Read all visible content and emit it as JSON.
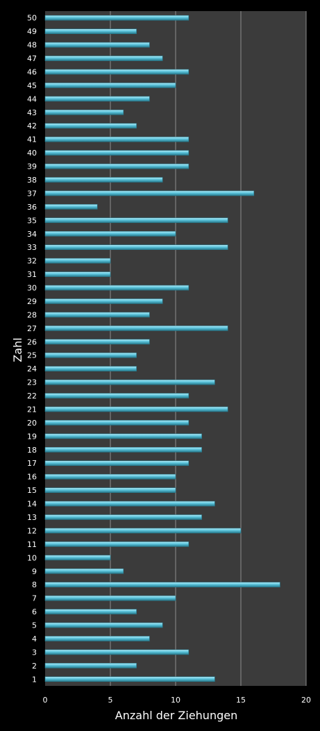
{
  "chart_data": {
    "type": "bar",
    "orientation": "horizontal",
    "categories": [
      "1",
      "2",
      "3",
      "4",
      "5",
      "6",
      "7",
      "8",
      "9",
      "10",
      "11",
      "12",
      "13",
      "14",
      "15",
      "16",
      "17",
      "18",
      "19",
      "20",
      "21",
      "22",
      "23",
      "24",
      "25",
      "26",
      "27",
      "28",
      "29",
      "30",
      "31",
      "32",
      "33",
      "34",
      "35",
      "36",
      "37",
      "38",
      "39",
      "40",
      "41",
      "42",
      "43",
      "44",
      "45",
      "46",
      "47",
      "48",
      "49",
      "50"
    ],
    "values": [
      13,
      7,
      11,
      8,
      9,
      7,
      10,
      18,
      6,
      5,
      11,
      15,
      12,
      13,
      10,
      10,
      11,
      12,
      12,
      11,
      14,
      11,
      13,
      7,
      7,
      8,
      14,
      8,
      9,
      11,
      5,
      5,
      14,
      10,
      14,
      4,
      16,
      9,
      11,
      11,
      11,
      7,
      6,
      8,
      10,
      11,
      9,
      8,
      7,
      11
    ],
    "xlabel": "Anzahl der Ziehungen",
    "ylabel": "Zahl",
    "xlim": [
      0,
      20
    ],
    "xticks": [
      0,
      5,
      10,
      15,
      20
    ],
    "grid": true,
    "colors": {
      "background": "#000000",
      "plot_area": "#3b3b3b",
      "gridline": "#8c8c8c",
      "bar_fill": "#5bc4dc",
      "bar_highlight": "#b6ecf8",
      "bar_shadow": "#27798c",
      "text": "#ffffff"
    }
  }
}
